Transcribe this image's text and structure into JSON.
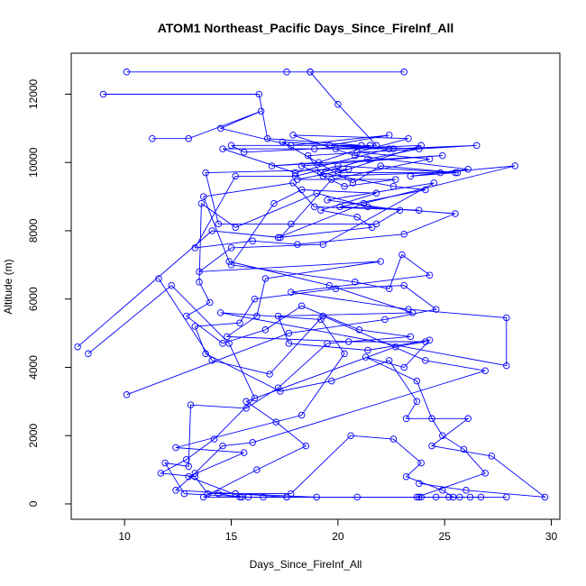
{
  "chart_data": {
    "type": "line",
    "title": "ATOM1 Northeast_Pacific Days_Since_FireInf_All",
    "xlabel": "Days_Since_FireInf_All",
    "ylabel": "Altitude (m)",
    "xlim": [
      7.5,
      30.4
    ],
    "ylim": [
      -450,
      13200
    ],
    "x_ticks": [
      10,
      15,
      20,
      25,
      30
    ],
    "y_ticks": [
      0,
      2000,
      4000,
      6000,
      8000,
      10000,
      12000
    ],
    "grid": false,
    "legend": "none",
    "series_color": "#0000ff",
    "marker": "open-circle",
    "series": [
      {
        "points": [
          [
            10.1,
            12650
          ],
          [
            17.6,
            12650
          ],
          [
            18.7,
            12650
          ],
          [
            23.1,
            12650
          ],
          [
            18.7,
            12650
          ],
          [
            20.0,
            11700
          ],
          [
            21.8,
            10500
          ],
          [
            19.9,
            10400
          ],
          [
            23.9,
            10500
          ],
          [
            20.0,
            9700
          ],
          [
            25.6,
            9700
          ],
          [
            22.0,
            9900
          ],
          [
            20.7,
            9400
          ],
          [
            17.4,
            10600
          ],
          [
            22.4,
            10400
          ],
          [
            18.0,
            9700
          ],
          [
            14.6,
            10400
          ],
          [
            22.6,
            10400
          ],
          [
            26.5,
            10500
          ],
          [
            18.6,
            10200
          ],
          [
            19.3,
            9600
          ],
          [
            24.8,
            9700
          ],
          [
            28.3,
            9900
          ],
          [
            21.2,
            8800
          ],
          [
            17.2,
            7800
          ],
          [
            21.6,
            8100
          ],
          [
            20.9,
            8400
          ],
          [
            19.2,
            8600
          ],
          [
            21.8,
            9100
          ],
          [
            18.3,
            9200
          ],
          [
            17.0,
            8800
          ],
          [
            15.0,
            7000
          ],
          [
            20.8,
            6500
          ],
          [
            22.4,
            6300
          ],
          [
            23.0,
            7300
          ],
          [
            24.3,
            6700
          ],
          [
            17.8,
            6200
          ],
          [
            23.3,
            5700
          ],
          [
            27.9,
            5450
          ],
          [
            27.9,
            4050
          ],
          [
            14.5,
            5600
          ],
          [
            19.2,
            5400
          ],
          [
            20.3,
            4400
          ],
          [
            18.3,
            2600
          ],
          [
            12.4,
            1650
          ],
          [
            15.6,
            1500
          ],
          [
            13.0,
            800
          ],
          [
            15.5,
            200
          ],
          [
            17.6,
            200
          ],
          [
            15.4,
            200
          ],
          [
            14.4,
            300
          ]
        ]
      },
      {
        "points": [
          [
            9.0,
            12000
          ],
          [
            16.3,
            12000
          ],
          [
            16.7,
            10700
          ],
          [
            21.1,
            10500
          ],
          [
            18.9,
            10400
          ],
          [
            15.6,
            10300
          ],
          [
            15.0,
            10500
          ],
          [
            21.5,
            10500
          ],
          [
            19.1,
            10000
          ],
          [
            16.9,
            9900
          ],
          [
            24.9,
            10200
          ],
          [
            18.3,
            9900
          ],
          [
            20.3,
            9300
          ],
          [
            22.7,
            9500
          ],
          [
            18.1,
            9500
          ],
          [
            20.5,
            9800
          ],
          [
            13.8,
            9700
          ],
          [
            14.4,
            8200
          ],
          [
            17.8,
            8200
          ],
          [
            21.8,
            8200
          ],
          [
            22.9,
            8600
          ],
          [
            19.5,
            8900
          ],
          [
            24.5,
            9400
          ],
          [
            19.3,
            7600
          ],
          [
            15.0,
            7500
          ],
          [
            13.5,
            6800
          ],
          [
            22.0,
            7100
          ],
          [
            16.6,
            6600
          ],
          [
            16.2,
            5500
          ],
          [
            14.8,
            4900
          ],
          [
            20.5,
            4750
          ],
          [
            24.1,
            4750
          ],
          [
            22.7,
            4600
          ],
          [
            15.7,
            3000
          ],
          [
            17.1,
            2400
          ],
          [
            18.5,
            1700
          ],
          [
            16.2,
            1000
          ],
          [
            13.7,
            200
          ],
          [
            16.5,
            200
          ],
          [
            23.9,
            200
          ],
          [
            24.6,
            200
          ],
          [
            26.2,
            200
          ],
          [
            25.7,
            200
          ]
        ]
      },
      {
        "points": [
          [
            11.3,
            10700
          ],
          [
            13.0,
            10700
          ],
          [
            16.4,
            11500
          ],
          [
            14.5,
            11000
          ],
          [
            17.8,
            10500
          ],
          [
            22.4,
            10800
          ],
          [
            19.6,
            10500
          ],
          [
            23.8,
            10400
          ],
          [
            21.4,
            10100
          ],
          [
            19.2,
            9700
          ],
          [
            22.6,
            9300
          ],
          [
            24.1,
            9200
          ],
          [
            20.1,
            8700
          ],
          [
            23.8,
            8600
          ],
          [
            18.9,
            8700
          ],
          [
            17.9,
            9400
          ],
          [
            13.7,
            9000
          ],
          [
            14.9,
            7100
          ],
          [
            19.6,
            6400
          ],
          [
            23.5,
            5600
          ],
          [
            17.2,
            5500
          ],
          [
            17.7,
            4700
          ],
          [
            21.4,
            4500
          ],
          [
            24.3,
            4800
          ],
          [
            23.1,
            4000
          ],
          [
            21.3,
            4300
          ],
          [
            23.7,
            3600
          ],
          [
            24.4,
            2500
          ],
          [
            24.9,
            2000
          ],
          [
            25.9,
            1600
          ],
          [
            26.9,
            900
          ],
          [
            23.7,
            200
          ],
          [
            19.0,
            200
          ],
          [
            15.2,
            300
          ]
        ]
      },
      {
        "points": [
          [
            7.8,
            4600
          ],
          [
            14.1,
            8000
          ],
          [
            17.3,
            7800
          ],
          [
            19.7,
            9500
          ],
          [
            24.3,
            10100
          ],
          [
            20.9,
            10300
          ],
          [
            23.3,
            10700
          ],
          [
            17.9,
            10800
          ],
          [
            20.8,
            10200
          ],
          [
            26.1,
            9800
          ],
          [
            23.4,
            9600
          ],
          [
            25.5,
            9700
          ],
          [
            20.0,
            9900
          ],
          [
            18.0,
            9600
          ],
          [
            15.2,
            9600
          ],
          [
            13.3,
            7500
          ],
          [
            16.0,
            7700
          ],
          [
            18.1,
            7600
          ],
          [
            23.1,
            7900
          ],
          [
            25.5,
            8500
          ],
          [
            21.4,
            8700
          ],
          [
            19.0,
            9100
          ],
          [
            15.2,
            8100
          ],
          [
            13.6,
            8800
          ],
          [
            13.5,
            6500
          ],
          [
            14.0,
            5900
          ],
          [
            12.9,
            5500
          ],
          [
            14.6,
            4700
          ],
          [
            16.6,
            5100
          ],
          [
            18.3,
            5800
          ],
          [
            21.0,
            5100
          ],
          [
            23.4,
            4900
          ],
          [
            19.5,
            4700
          ],
          [
            17.2,
            3400
          ],
          [
            15.7,
            2800
          ],
          [
            13.1,
            2900
          ],
          [
            13.0,
            1100
          ],
          [
            11.9,
            1200
          ],
          [
            12.8,
            300
          ],
          [
            15.8,
            200
          ]
        ]
      },
      {
        "points": [
          [
            8.3,
            4400
          ],
          [
            12.2,
            6400
          ],
          [
            14.9,
            4700
          ],
          [
            16.1,
            3100
          ],
          [
            14.2,
            1900
          ],
          [
            12.9,
            1300
          ],
          [
            11.7,
            900
          ],
          [
            13.3,
            800
          ],
          [
            13.9,
            300
          ],
          [
            17.8,
            300
          ],
          [
            20.6,
            2000
          ],
          [
            22.6,
            1900
          ],
          [
            23.9,
            1200
          ],
          [
            23.2,
            800
          ],
          [
            24.9,
            400
          ],
          [
            25.4,
            200
          ],
          [
            26.7,
            200
          ]
        ]
      },
      {
        "points": [
          [
            10.1,
            3200
          ],
          [
            17.7,
            5000
          ],
          [
            22.2,
            5400
          ],
          [
            24.6,
            5700
          ],
          [
            23.1,
            6400
          ],
          [
            19.9,
            6300
          ],
          [
            16.1,
            6000
          ],
          [
            15.4,
            5300
          ],
          [
            13.3,
            5200
          ],
          [
            13.8,
            4400
          ],
          [
            17.3,
            3300
          ],
          [
            19.7,
            3600
          ],
          [
            22.4,
            4200
          ],
          [
            23.7,
            3000
          ],
          [
            23.2,
            2500
          ],
          [
            26.1,
            2500
          ],
          [
            24.4,
            1700
          ],
          [
            27.2,
            1400
          ],
          [
            29.7,
            200
          ],
          [
            26.0,
            400
          ],
          [
            23.8,
            600
          ]
        ]
      },
      {
        "points": [
          [
            11.6,
            6600
          ],
          [
            14.1,
            4200
          ],
          [
            16.8,
            3800
          ],
          [
            19.3,
            5500
          ],
          [
            24.1,
            4200
          ],
          [
            26.9,
            3900
          ],
          [
            16.0,
            1800
          ],
          [
            14.6,
            1700
          ],
          [
            13.3,
            900
          ],
          [
            12.4,
            400
          ],
          [
            15.2,
            300
          ],
          [
            17.6,
            200
          ],
          [
            20.9,
            200
          ],
          [
            23.8,
            200
          ],
          [
            25.2,
            200
          ],
          [
            27.9,
            200
          ]
        ]
      }
    ]
  }
}
